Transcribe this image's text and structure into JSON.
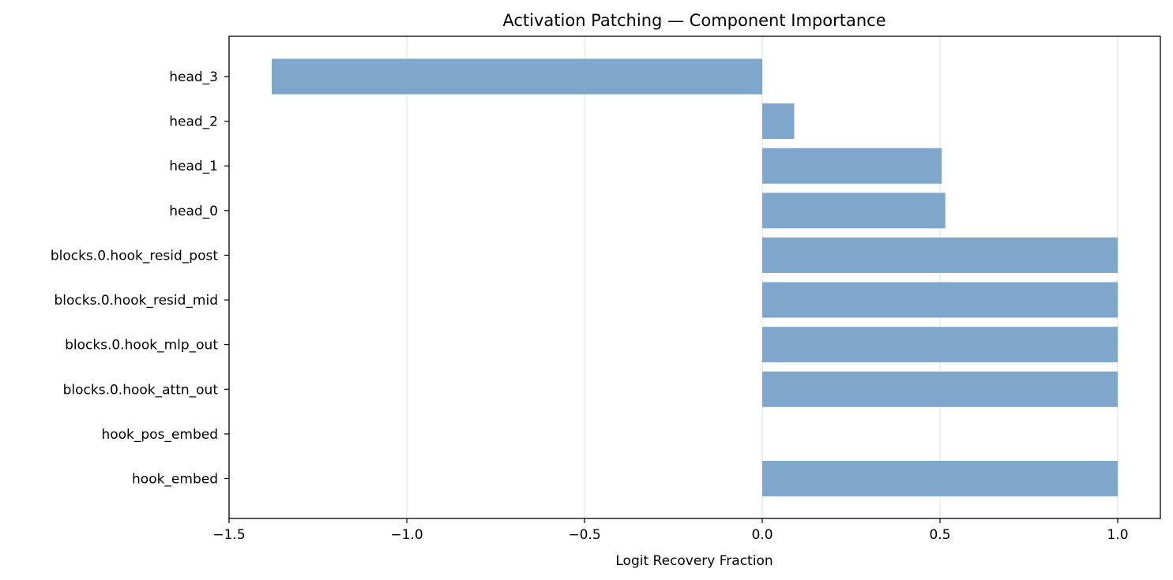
{
  "chart_data": {
    "type": "bar",
    "orientation": "horizontal",
    "title": "Activation Patching — Component Importance",
    "xlabel": "Logit Recovery Fraction",
    "ylabel": "",
    "xlim": [
      -1.5,
      1.12
    ],
    "xticks": [
      -1.5,
      -1.0,
      -0.5,
      0.0,
      0.5,
      1.0
    ],
    "xtick_labels": [
      "−1.5",
      "−1.0",
      "−0.5",
      "0.0",
      "0.5",
      "1.0"
    ],
    "grid": "vertical",
    "bar_color": "#7ea7cb",
    "categories": [
      "hook_embed",
      "hook_pos_embed",
      "blocks.0.hook_attn_out",
      "blocks.0.hook_mlp_out",
      "blocks.0.hook_resid_mid",
      "blocks.0.hook_resid_post",
      "head_0",
      "head_1",
      "head_2",
      "head_3"
    ],
    "values": [
      1.0,
      0.0,
      1.0,
      1.0,
      1.0,
      1.0,
      0.515,
      0.505,
      0.09,
      -1.38
    ]
  }
}
